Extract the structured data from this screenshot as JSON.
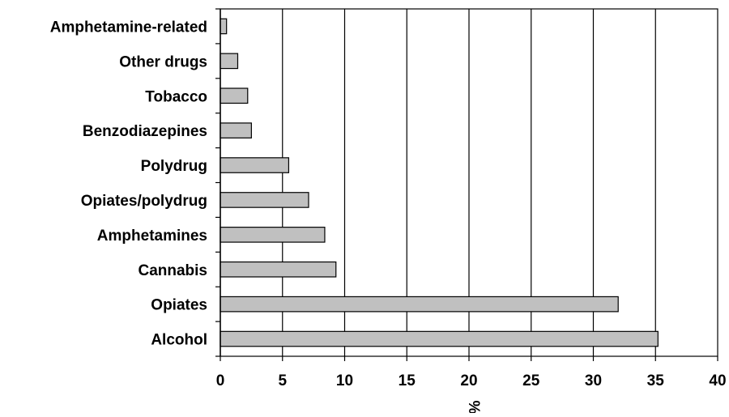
{
  "chart_data": {
    "type": "bar",
    "orientation": "horizontal",
    "categories": [
      "Amphetamine-related",
      "Other drugs",
      "Tobacco",
      "Benzodiazepines",
      "Polydrug",
      "Opiates/polydrug",
      "Amphetamines",
      "Cannabis",
      "Opiates",
      "Alcohol"
    ],
    "values": [
      0.5,
      1.4,
      2.2,
      2.5,
      5.5,
      7.1,
      8.4,
      9.3,
      32.0,
      35.2
    ],
    "title": "",
    "xlabel": "%",
    "ylabel": "",
    "xlim": [
      0,
      40
    ],
    "x_ticks": [
      "0",
      "5",
      "10",
      "15",
      "20",
      "25",
      "30",
      "35",
      "40"
    ],
    "grid": "vertical",
    "bar_color": "#c0c0c0",
    "bar_stroke": "#000000",
    "legend": "none"
  }
}
